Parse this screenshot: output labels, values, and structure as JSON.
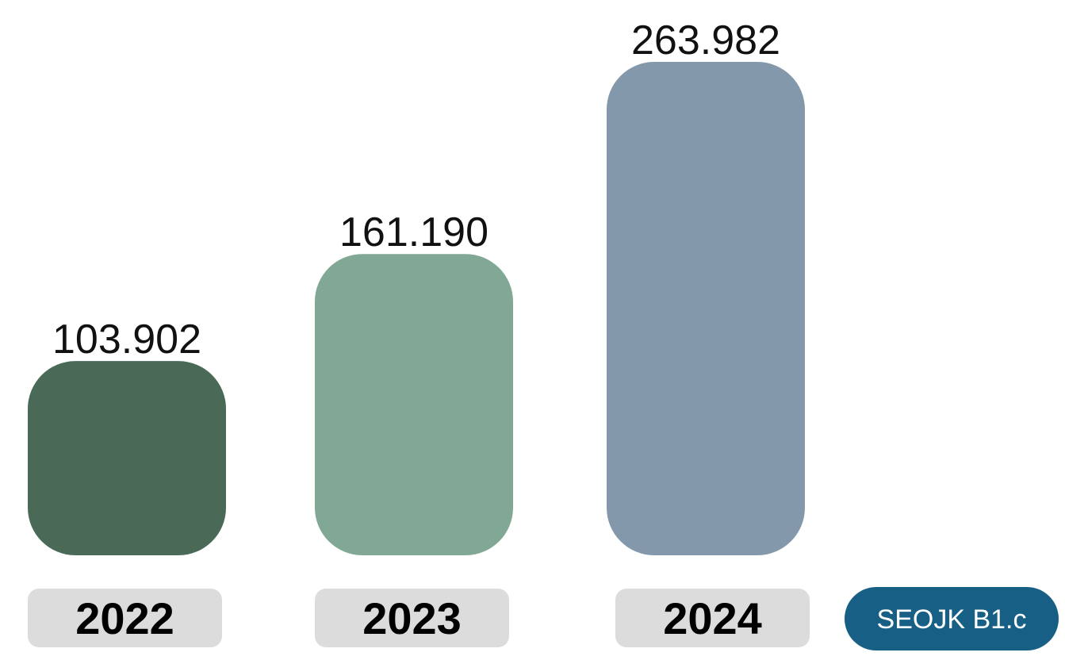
{
  "chart_data": {
    "type": "bar",
    "categories": [
      "2022",
      "2023",
      "2024"
    ],
    "values": [
      103902,
      161190,
      263982
    ],
    "value_labels": [
      "103.902",
      "161.190",
      "263.982"
    ],
    "bar_colors": [
      "#4a6a57",
      "#80a894",
      "#8398ab"
    ],
    "category_chip_color": "#dcdcdc",
    "title": "",
    "xlabel": "",
    "ylabel": "",
    "ylim": [
      0,
      263982
    ],
    "grid": false,
    "legend": "none"
  },
  "badge": {
    "label": "SEOJK B1.c",
    "color": "#175f85"
  }
}
